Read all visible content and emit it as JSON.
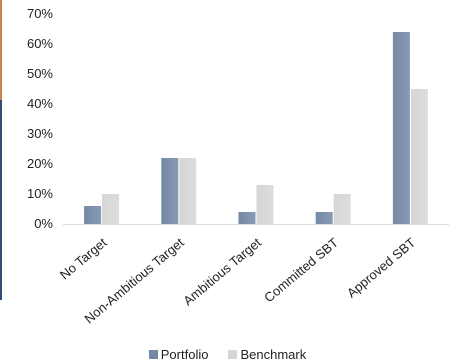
{
  "chart_data": {
    "type": "bar",
    "categories": [
      "No Target",
      "Non-Ambitious Target",
      "Ambitious Target",
      "Committed SBT",
      "Approved SBT"
    ],
    "series": [
      {
        "name": "Portfolio",
        "values": [
          6,
          22,
          4,
          4,
          64
        ],
        "color": "#7489a6"
      },
      {
        "name": "Benchmark",
        "values": [
          10,
          22,
          13,
          10,
          45
        ],
        "color": "#d6d6d6"
      }
    ],
    "ylim": [
      0,
      70
    ],
    "yticks": [
      "0%",
      "10%",
      "20%",
      "30%",
      "40%",
      "50%",
      "60%",
      "70%"
    ],
    "grid": false,
    "legend_position": "bottom-center"
  }
}
